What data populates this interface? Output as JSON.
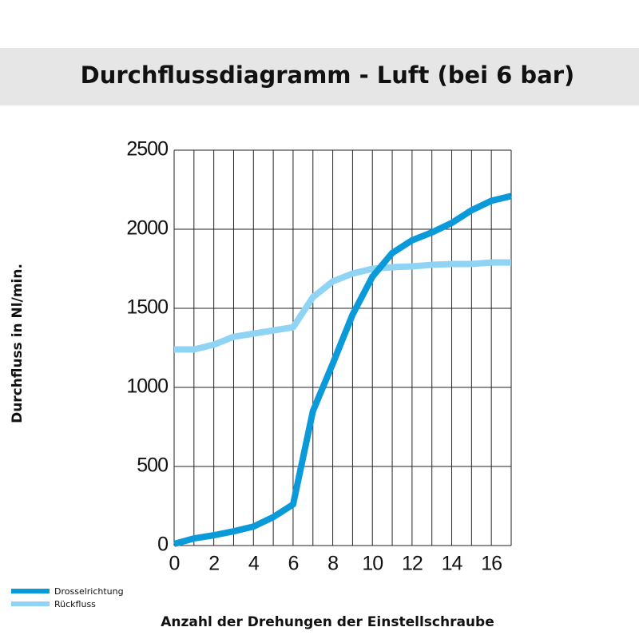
{
  "chart_data": {
    "type": "line",
    "title": "Durchflussdiagramm - Luft (bei 6 bar)",
    "xlabel": "Anzahl der Drehungen der Einstellschraube",
    "ylabel": "Durchfluss in Nl/min.",
    "x": [
      0,
      1,
      2,
      3,
      4,
      5,
      6,
      7,
      8,
      9,
      10,
      11,
      12,
      13,
      14,
      15,
      16,
      17
    ],
    "series": [
      {
        "name": "Drosselrichtung",
        "color": "#0a9ad9",
        "values": [
          10,
          45,
          65,
          90,
          120,
          180,
          260,
          850,
          1150,
          1460,
          1700,
          1850,
          1930,
          1980,
          2040,
          2120,
          2180,
          2210
        ]
      },
      {
        "name": "Rückfluss",
        "color": "#8fd3f5",
        "values": [
          1240,
          1240,
          1270,
          1320,
          1340,
          1360,
          1380,
          1570,
          1670,
          1720,
          1750,
          1760,
          1765,
          1775,
          1780,
          1780,
          1790,
          1790
        ]
      }
    ],
    "xlim": [
      0,
      17
    ],
    "xticks": [
      0,
      2,
      4,
      6,
      8,
      10,
      12,
      14,
      16
    ],
    "xminorticks": [
      1,
      3,
      5,
      7,
      9,
      11,
      13,
      15,
      17
    ],
    "ylim": [
      0,
      2500
    ],
    "yticks": [
      0,
      500,
      1000,
      1500,
      2000,
      2500
    ],
    "grid": true,
    "legend": "bottom-left"
  }
}
